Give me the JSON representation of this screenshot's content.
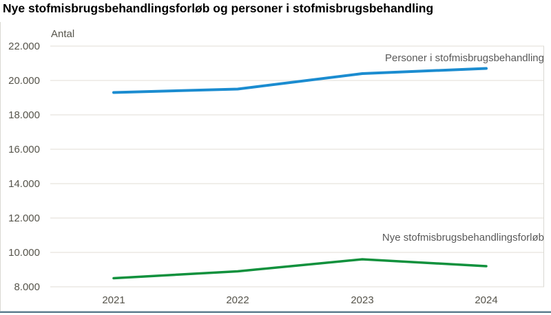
{
  "title": "Nye stofmisbrugsbehandlingsforløb og personer i stofmisbrugsbehandling",
  "chart_data": {
    "type": "line",
    "categories": [
      "2021",
      "2022",
      "2023",
      "2024"
    ],
    "series": [
      {
        "name": "Personer i stofmisbrugsbehandling",
        "values": [
          19300,
          19500,
          20400,
          20700
        ],
        "color": "#1b8cd0"
      },
      {
        "name": "Nye stofmisbrugsbehandlingsforløb",
        "values": [
          8500,
          8900,
          9600,
          9200
        ],
        "color": "#11913d"
      }
    ],
    "ylabel": "Antal",
    "ylim": [
      8000,
      22000
    ],
    "ytick_step": 2000,
    "ytick_labels": [
      "8.000",
      "10.000",
      "12.000",
      "14.000",
      "16.000",
      "18.000",
      "20.000",
      "22.000"
    ],
    "grid": true,
    "legend_position": "right-aligned annotations above each line end"
  },
  "colors": {
    "background": "#ffffff",
    "title_text": "#000000",
    "axis_text": "#56544b",
    "annotation_text": "#595959",
    "gridline": "#e6e4de",
    "side_border": "#d9d8d2",
    "bottom_rule": "#5d7d8e"
  }
}
